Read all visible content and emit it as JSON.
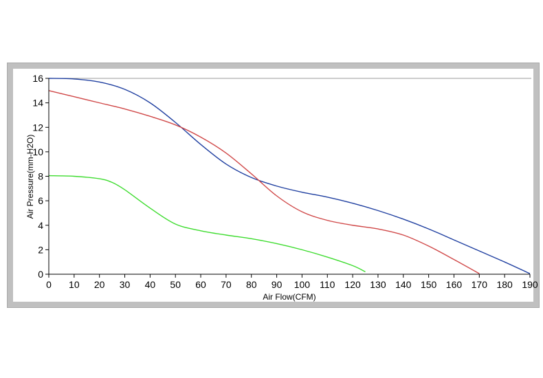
{
  "chart_data": {
    "type": "line",
    "title": "",
    "xlabel": "Air Flow(CFM)",
    "ylabel": "Air Pressure(mm-H2O)",
    "xlim": [
      0,
      190
    ],
    "ylim": [
      0,
      16
    ],
    "x_ticks": [
      0,
      10,
      20,
      30,
      40,
      50,
      60,
      70,
      80,
      90,
      100,
      110,
      120,
      130,
      140,
      150,
      160,
      170,
      180,
      190
    ],
    "y_ticks": [
      0,
      2,
      4,
      6,
      8,
      10,
      12,
      14,
      16
    ],
    "grid": false,
    "top_reference_line": 16,
    "series": [
      {
        "color": "#1f3fa0",
        "points": [
          [
            0,
            16
          ],
          [
            10,
            15.95
          ],
          [
            20,
            15.7
          ],
          [
            30,
            15.1
          ],
          [
            40,
            14.0
          ],
          [
            50,
            12.4
          ],
          [
            60,
            10.6
          ],
          [
            70,
            9.0
          ],
          [
            80,
            7.9
          ],
          [
            90,
            7.2
          ],
          [
            100,
            6.7
          ],
          [
            110,
            6.3
          ],
          [
            120,
            5.8
          ],
          [
            130,
            5.2
          ],
          [
            140,
            4.5
          ],
          [
            150,
            3.7
          ],
          [
            160,
            2.8
          ],
          [
            170,
            1.9
          ],
          [
            180,
            1.0
          ],
          [
            190,
            0.05
          ]
        ]
      },
      {
        "color": "#d04848",
        "points": [
          [
            0,
            15.0
          ],
          [
            10,
            14.5
          ],
          [
            20,
            14.0
          ],
          [
            30,
            13.5
          ],
          [
            40,
            12.9
          ],
          [
            50,
            12.2
          ],
          [
            60,
            11.2
          ],
          [
            70,
            9.9
          ],
          [
            80,
            8.2
          ],
          [
            90,
            6.4
          ],
          [
            100,
            5.1
          ],
          [
            110,
            4.4
          ],
          [
            120,
            4.0
          ],
          [
            130,
            3.7
          ],
          [
            140,
            3.2
          ],
          [
            150,
            2.3
          ],
          [
            160,
            1.2
          ],
          [
            170,
            0.05
          ]
        ]
      },
      {
        "color": "#3ddc2e",
        "points": [
          [
            0,
            8.05
          ],
          [
            10,
            8.0
          ],
          [
            20,
            7.8
          ],
          [
            25,
            7.5
          ],
          [
            30,
            6.9
          ],
          [
            40,
            5.4
          ],
          [
            50,
            4.1
          ],
          [
            60,
            3.55
          ],
          [
            70,
            3.2
          ],
          [
            80,
            2.9
          ],
          [
            90,
            2.5
          ],
          [
            100,
            2.0
          ],
          [
            110,
            1.4
          ],
          [
            120,
            0.7
          ],
          [
            125,
            0.2
          ]
        ]
      }
    ]
  }
}
